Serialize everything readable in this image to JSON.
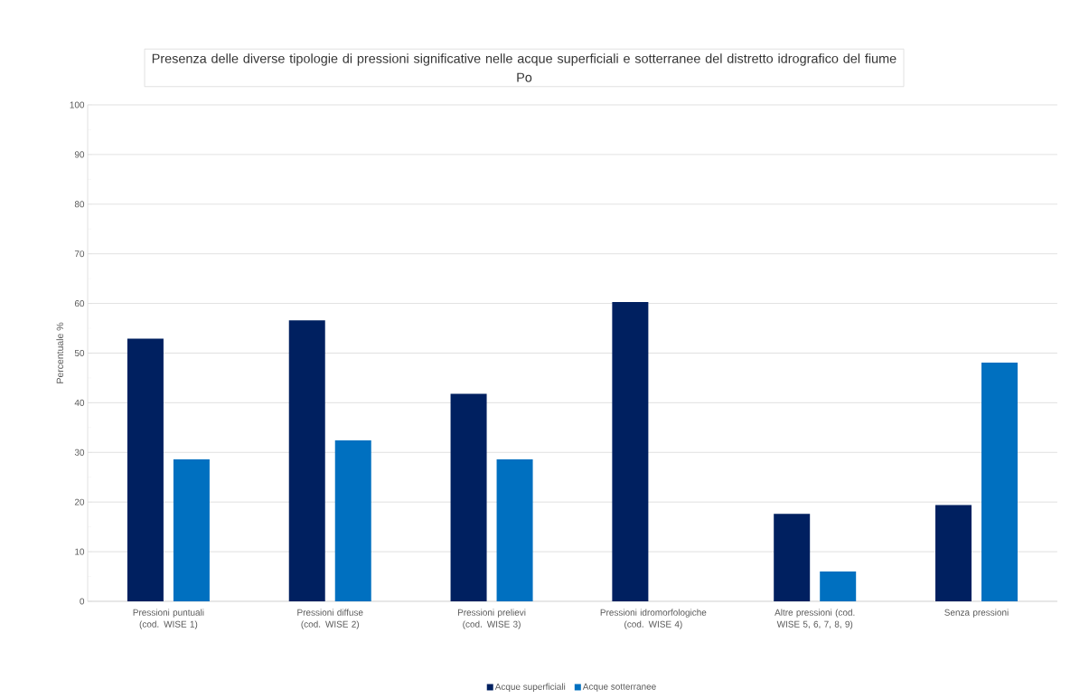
{
  "chart_data": {
    "type": "bar",
    "title": "Presenza delle diverse tipologie di pressioni significative nelle acque superficiali e sotterranee del distretto idrografico del fiume Po",
    "ylabel": "Percentuale %",
    "categories": [
      "Pressioni puntuali (cod. WISE 1)",
      "Pressioni diffuse (cod. WISE 2)",
      "Pressioni prelievi (cod. WISE 3)",
      "Pressioni idromorfologiche (cod. WISE 4)",
      "Altre pressioni (cod. WISE 5, 6, 7, 8, 9)",
      "Senza pressioni"
    ],
    "series": [
      {
        "name": "Acque superficiali",
        "color": "#002060",
        "values": [
          52.9,
          56.6,
          41.8,
          60.3,
          17.6,
          19.4
        ]
      },
      {
        "name": "Acque sotterranee",
        "color": "#0070c0",
        "values": [
          28.6,
          32.4,
          28.6,
          null,
          6.0,
          48.1
        ]
      }
    ],
    "ylim": [
      0,
      100
    ],
    "yticks": [
      0,
      10,
      20,
      30,
      40,
      50,
      60,
      70,
      80,
      90,
      100
    ],
    "grid": "y",
    "legend": "bottom"
  }
}
